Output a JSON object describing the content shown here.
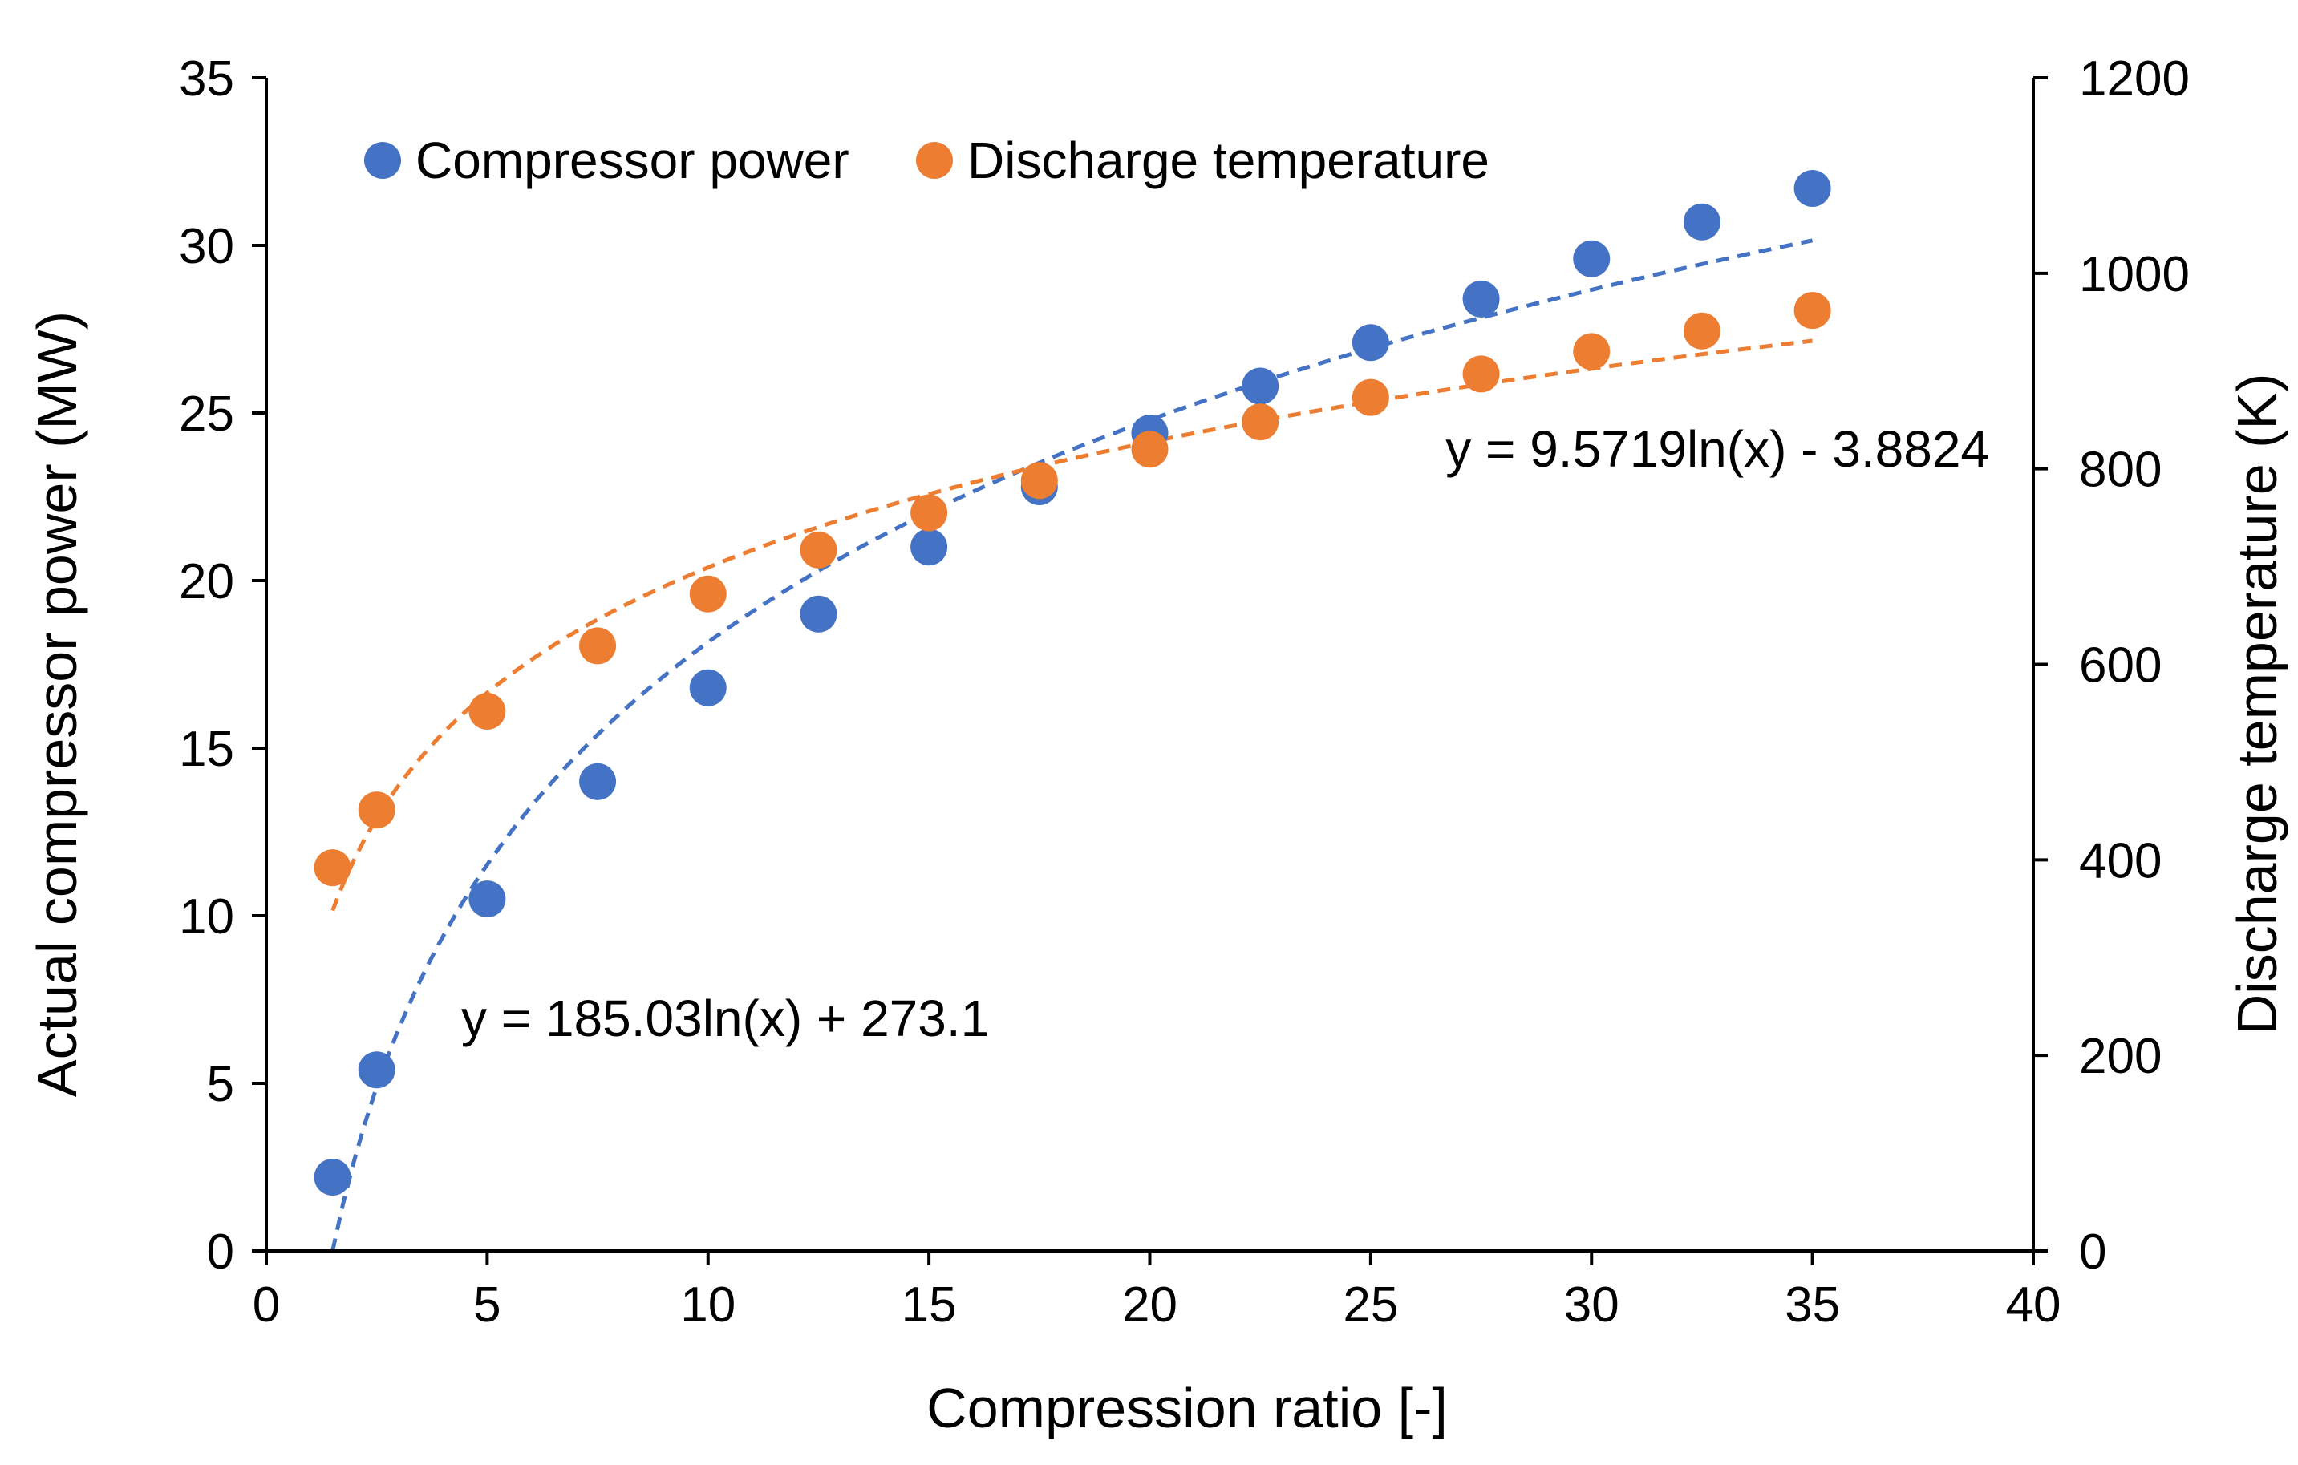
{
  "chart_data": {
    "type": "scatter",
    "x_axis": {
      "label": "Compression ratio [-]",
      "range": [
        0,
        40
      ],
      "ticks": [
        0,
        5,
        10,
        15,
        20,
        25,
        30,
        35,
        40
      ]
    },
    "y_axis_left": {
      "label": "Actual compressor power (MW)",
      "range": [
        0,
        35
      ],
      "ticks": [
        0,
        5,
        10,
        15,
        20,
        25,
        30,
        35
      ]
    },
    "y_axis_right": {
      "label": "Discharge temperature (K)",
      "range": [
        0,
        1200
      ],
      "ticks": [
        0,
        200,
        400,
        600,
        800,
        1000,
        1200
      ]
    },
    "legend_position": "top-left",
    "grid": false,
    "series": [
      {
        "name": "Compressor power",
        "axis": "left",
        "color": "#4472C4",
        "x": [
          1.5,
          2.5,
          5,
          7.5,
          10,
          12.5,
          15,
          17.5,
          20,
          22.5,
          25,
          27.5,
          30,
          32.5,
          35
        ],
        "y": [
          2.2,
          5.4,
          10.5,
          14.0,
          16.8,
          19.0,
          21.0,
          22.8,
          24.4,
          25.8,
          27.1,
          28.4,
          29.6,
          30.7,
          31.7
        ],
        "trendline": {
          "type": "logarithmic",
          "a": 9.5719,
          "b": -3.8824,
          "x_range": [
            1.5,
            35
          ],
          "equation": "y = 9.5719ln(x) - 3.8824"
        }
      },
      {
        "name": "Discharge temperature",
        "axis": "right",
        "color": "#ED7D31",
        "x": [
          1.5,
          2.5,
          5,
          7.5,
          10,
          12.5,
          15,
          17.5,
          20,
          22.5,
          25,
          27.5,
          30,
          32.5,
          35
        ],
        "y": [
          392,
          451,
          552,
          619,
          672,
          717,
          755,
          788,
          820,
          848,
          873,
          897,
          920,
          941,
          962
        ],
        "trendline": {
          "type": "logarithmic",
          "a": 185.03,
          "b": 273.1,
          "x_range": [
            1.5,
            35
          ],
          "equation": "y = 185.03ln(x) + 273.1"
        }
      }
    ]
  }
}
